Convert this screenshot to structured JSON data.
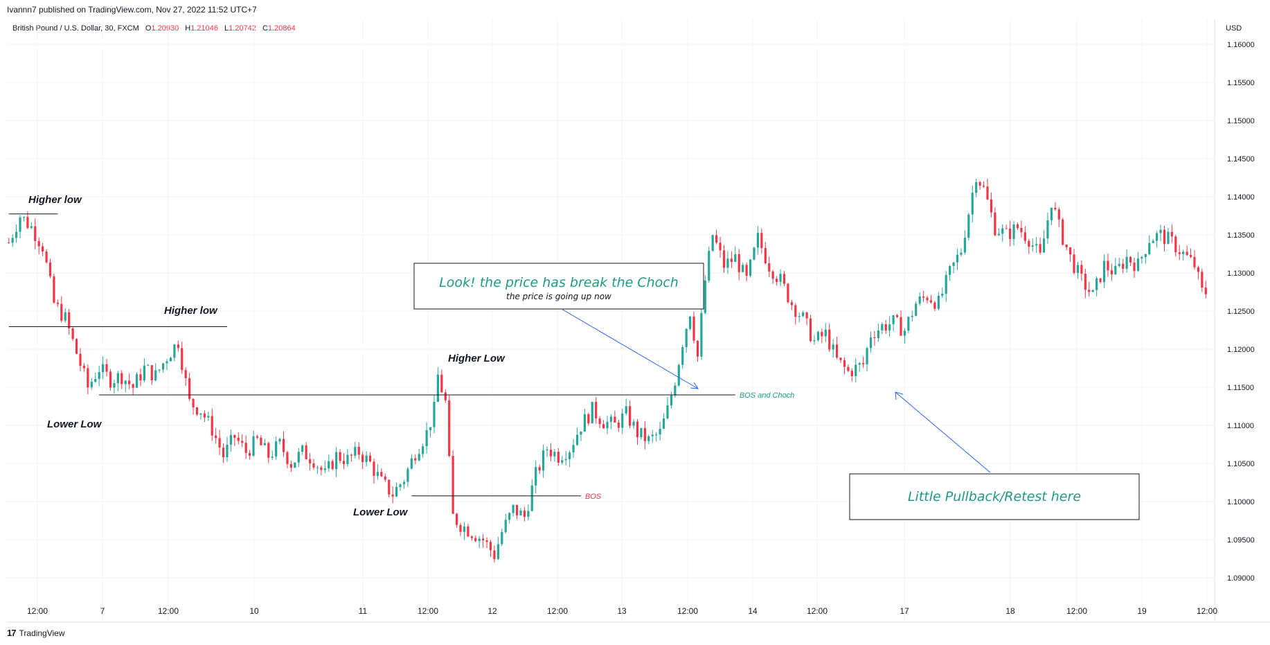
{
  "header": {
    "published": "Ivannn7 published on TradingView.com, Nov 27, 2022 11:52 UTC+7",
    "symbol": "British Pound / U.S. Dollar, 30, FXCM",
    "open_label": "O",
    "open": "1.20930",
    "high_label": "H",
    "high": "1.21046",
    "low_label": "L",
    "low": "1.20742",
    "close_label": "C",
    "close": "1.20864"
  },
  "footer": {
    "brand": "TradingView"
  },
  "colors": {
    "up": "#26a69a",
    "down": "#f23645",
    "note_text": "#1e9a84",
    "arrow": "#2962ff",
    "grid": "#f0f3fa"
  },
  "chart_data": {
    "type": "candlestick",
    "currency": "USD",
    "ylim": [
      1.0865,
      1.1635
    ],
    "y_ticks": [
      "1.16000",
      "1.15500",
      "1.15000",
      "1.14500",
      "1.14000",
      "1.13500",
      "1.13000",
      "1.12500",
      "1.12000",
      "1.11500",
      "1.11000",
      "1.10500",
      "1.10000",
      "1.09500",
      "1.09000"
    ],
    "x_ticks": [
      "12:00",
      "7",
      "12:00",
      "10",
      "11",
      "12:00",
      "12",
      "12:00",
      "13",
      "12:00",
      "14",
      "12:00",
      "17",
      "18",
      "12:00",
      "19",
      "12:00"
    ],
    "price_path": [
      [
        0,
        1.134
      ],
      [
        3,
        1.1375
      ],
      [
        6,
        1.136
      ],
      [
        9,
        1.1335
      ],
      [
        12,
        1.126
      ],
      [
        15,
        1.124
      ],
      [
        18,
        1.1195
      ],
      [
        21,
        1.115
      ],
      [
        24,
        1.1175
      ],
      [
        27,
        1.116
      ],
      [
        30,
        1.1165
      ],
      [
        33,
        1.115
      ],
      [
        36,
        1.1175
      ],
      [
        39,
        1.1165
      ],
      [
        42,
        1.119
      ],
      [
        45,
        1.121
      ],
      [
        48,
        1.113
      ],
      [
        51,
        1.112
      ],
      [
        54,
        1.1095
      ],
      [
        57,
        1.106
      ],
      [
        60,
        1.1085
      ],
      [
        63,
        1.1065
      ],
      [
        66,
        1.108
      ],
      [
        69,
        1.106
      ],
      [
        72,
        1.1075
      ],
      [
        75,
        1.105
      ],
      [
        78,
        1.1065
      ],
      [
        81,
        1.1055
      ],
      [
        84,
        1.1035
      ],
      [
        87,
        1.106
      ],
      [
        90,
        1.1055
      ],
      [
        93,
        1.1065
      ],
      [
        96,
        1.105
      ],
      [
        99,
        1.1025
      ],
      [
        102,
        1.101
      ],
      [
        105,
        1.103
      ],
      [
        108,
        1.1065
      ],
      [
        111,
        1.109
      ],
      [
        113,
        1.112
      ],
      [
        114,
        1.1165
      ],
      [
        116,
        1.113
      ],
      [
        117,
        1.105
      ],
      [
        118,
        1.098
      ],
      [
        120,
        1.097
      ],
      [
        123,
        1.096
      ],
      [
        126,
        1.095
      ],
      [
        129,
        1.093
      ],
      [
        131,
        1.096
      ],
      [
        134,
        1.099
      ],
      [
        137,
        1.098
      ],
      [
        140,
        1.1035
      ],
      [
        143,
        1.107
      ],
      [
        146,
        1.106
      ],
      [
        149,
        1.107
      ],
      [
        152,
        1.11
      ],
      [
        155,
        1.112
      ],
      [
        158,
        1.1105
      ],
      [
        161,
        1.11
      ],
      [
        164,
        1.1115
      ],
      [
        167,
        1.109
      ],
      [
        170,
        1.108
      ],
      [
        173,
        1.109
      ],
      [
        175,
        1.112
      ],
      [
        177,
        1.116
      ],
      [
        179,
        1.121
      ],
      [
        181,
        1.125
      ],
      [
        183,
        1.119
      ],
      [
        185,
        1.129
      ],
      [
        187,
        1.135
      ],
      [
        190,
        1.131
      ],
      [
        193,
        1.132
      ],
      [
        196,
        1.129
      ],
      [
        199,
        1.1345
      ],
      [
        202,
        1.131
      ],
      [
        205,
        1.129
      ],
      [
        208,
        1.126
      ],
      [
        211,
        1.124
      ],
      [
        214,
        1.121
      ],
      [
        217,
        1.122
      ],
      [
        220,
        1.1185
      ],
      [
        223,
        1.117
      ],
      [
        225,
        1.1175
      ],
      [
        227,
        1.118
      ],
      [
        229,
        1.122
      ],
      [
        232,
        1.123
      ],
      [
        235,
        1.1235
      ],
      [
        238,
        1.1225
      ],
      [
        241,
        1.126
      ],
      [
        244,
        1.127
      ],
      [
        247,
        1.126
      ],
      [
        250,
        1.13
      ],
      [
        253,
        1.133
      ],
      [
        255,
        1.138
      ],
      [
        257,
        1.143
      ],
      [
        259,
        1.141
      ],
      [
        262,
        1.136
      ],
      [
        265,
        1.135
      ],
      [
        268,
        1.136
      ],
      [
        271,
        1.1345
      ],
      [
        274,
        1.132
      ],
      [
        277,
        1.1395
      ],
      [
        279,
        1.136
      ],
      [
        282,
        1.132
      ],
      [
        285,
        1.129
      ],
      [
        288,
        1.127
      ],
      [
        291,
        1.131
      ],
      [
        294,
        1.13
      ],
      [
        297,
        1.132
      ],
      [
        300,
        1.131
      ],
      [
        303,
        1.1345
      ],
      [
        306,
        1.135
      ],
      [
        309,
        1.134
      ],
      [
        312,
        1.1325
      ],
      [
        315,
        1.131
      ],
      [
        317,
        1.1275
      ]
    ],
    "levels": [
      {
        "name": "Higher low 1",
        "price": 1.13775,
        "x_from": 0,
        "x_to": 13
      },
      {
        "name": "Higher low 2",
        "price": 1.12295,
        "x_from": 0,
        "x_to": 58
      },
      {
        "name": "BOS and Choch",
        "price": 1.114,
        "x_from": 24,
        "x_to": 193,
        "label": "BOS and Choch",
        "label_color": "#1e9a84"
      },
      {
        "name": "BOS",
        "price": 1.10075,
        "x_from": 107,
        "x_to": 152,
        "label": "BOS",
        "label_color": "#f23645"
      }
    ],
    "annotations": {
      "higher_low_1": "Higher low",
      "higher_low_2": "Higher low",
      "lower_low_1": "Lower Low",
      "higher_low_3": "Higher Low",
      "lower_low_2": "Lower Low",
      "callout_1_title": "Look! the price has break the Choch",
      "callout_1_sub": "the price is going up now",
      "callout_2_title": "Little Pullback/Retest here"
    }
  }
}
